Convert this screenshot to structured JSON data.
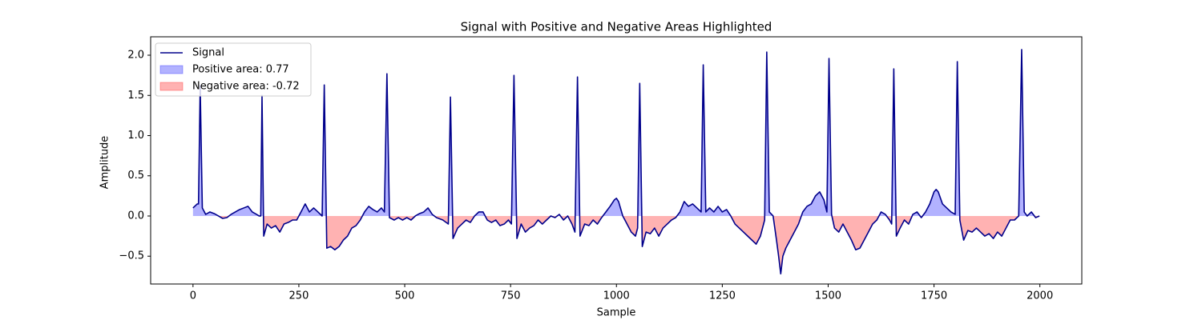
{
  "chart_data": {
    "type": "line",
    "title": "Signal with Positive and Negative Areas Highlighted",
    "xlabel": "Sample",
    "ylabel": "Amplitude",
    "xlim": [
      -100,
      2099
    ],
    "ylim": [
      -0.846,
      2.229
    ],
    "xticks": [
      0,
      250,
      500,
      750,
      1000,
      1250,
      1500,
      1750,
      2000
    ],
    "yticks": [
      {
        "value": -0.5,
        "label": "−0.5"
      },
      {
        "value": 0,
        "label": "0.0"
      },
      0.5,
      {
        "value": 1,
        "label": "1.0"
      },
      1.5,
      {
        "value": 2,
        "label": "2.0"
      }
    ],
    "legend": "upper left",
    "x": [
      0,
      10,
      13,
      17,
      22,
      30,
      40,
      50,
      60,
      70,
      80,
      90,
      100,
      110,
      120,
      130,
      140,
      150,
      156,
      160,
      163,
      167,
      175,
      185,
      195,
      205,
      215,
      225,
      235,
      245,
      255,
      265,
      275,
      285,
      295,
      305,
      310,
      316,
      325,
      335,
      345,
      355,
      365,
      375,
      385,
      395,
      405,
      415,
      425,
      435,
      445,
      452,
      458,
      464,
      475,
      485,
      495,
      505,
      515,
      525,
      535,
      545,
      555,
      565,
      575,
      590,
      603,
      608,
      614,
      625,
      635,
      645,
      655,
      665,
      675,
      685,
      695,
      705,
      715,
      725,
      735,
      745,
      752,
      758,
      765,
      775,
      785,
      795,
      805,
      815,
      825,
      835,
      845,
      855,
      865,
      875,
      885,
      895,
      902,
      908,
      914,
      925,
      935,
      945,
      955,
      965,
      975,
      985,
      995,
      1000,
      1005,
      1015,
      1025,
      1035,
      1045,
      1050,
      1055,
      1061,
      1070,
      1080,
      1090,
      1100,
      1110,
      1120,
      1130,
      1140,
      1150,
      1160,
      1170,
      1180,
      1190,
      1200,
      1205,
      1211,
      1220,
      1230,
      1240,
      1250,
      1260,
      1270,
      1280,
      1290,
      1300,
      1310,
      1320,
      1330,
      1340,
      1350,
      1355,
      1361,
      1370,
      1378,
      1383,
      1388,
      1393,
      1400,
      1410,
      1420,
      1430,
      1440,
      1450,
      1460,
      1470,
      1480,
      1490,
      1497,
      1502,
      1508,
      1515,
      1525,
      1535,
      1545,
      1555,
      1565,
      1575,
      1585,
      1595,
      1605,
      1615,
      1625,
      1635,
      1645,
      1650,
      1655,
      1661,
      1670,
      1680,
      1690,
      1700,
      1710,
      1720,
      1730,
      1740,
      1750,
      1755,
      1760,
      1770,
      1780,
      1790,
      1800,
      1805,
      1811,
      1820,
      1830,
      1840,
      1850,
      1860,
      1870,
      1880,
      1890,
      1900,
      1910,
      1920,
      1930,
      1940,
      1950,
      1957,
      1963,
      1970,
      1980,
      1990,
      1999
    ],
    "series": [
      {
        "name": "Signal",
        "color": "#00008b",
        "values": [
          0.1,
          0.15,
          0.15,
          1.62,
          0.1,
          0.02,
          0.05,
          0.03,
          0.0,
          -0.03,
          -0.02,
          0.02,
          0.05,
          0.08,
          0.1,
          0.12,
          0.05,
          0.02,
          0.0,
          0.0,
          1.5,
          -0.25,
          -0.1,
          -0.15,
          -0.12,
          -0.2,
          -0.1,
          -0.08,
          -0.05,
          -0.05,
          0.05,
          0.15,
          0.05,
          0.1,
          0.05,
          0.0,
          1.63,
          -0.4,
          -0.38,
          -0.42,
          -0.38,
          -0.3,
          -0.25,
          -0.15,
          -0.12,
          -0.05,
          0.05,
          0.12,
          0.08,
          0.05,
          0.1,
          0.05,
          1.77,
          -0.02,
          -0.05,
          -0.02,
          -0.05,
          -0.02,
          -0.05,
          0.0,
          0.03,
          0.05,
          0.1,
          0.02,
          -0.02,
          -0.05,
          -0.1,
          1.48,
          -0.28,
          -0.15,
          -0.1,
          -0.05,
          -0.08,
          0.0,
          0.05,
          0.05,
          -0.05,
          -0.08,
          -0.05,
          -0.12,
          -0.1,
          -0.05,
          -0.1,
          1.75,
          -0.28,
          -0.1,
          -0.2,
          -0.15,
          -0.12,
          -0.05,
          -0.1,
          -0.05,
          0.0,
          -0.02,
          0.02,
          -0.05,
          0.0,
          -0.1,
          -0.2,
          1.73,
          -0.25,
          -0.1,
          -0.12,
          -0.05,
          -0.1,
          -0.02,
          0.05,
          0.12,
          0.2,
          0.22,
          0.18,
          0.0,
          -0.1,
          -0.2,
          -0.25,
          -0.15,
          1.65,
          -0.38,
          -0.2,
          -0.22,
          -0.15,
          -0.25,
          -0.15,
          -0.1,
          -0.05,
          -0.02,
          0.05,
          0.18,
          0.12,
          0.15,
          0.1,
          0.05,
          1.88,
          0.05,
          0.1,
          0.05,
          0.12,
          0.05,
          0.08,
          0.0,
          -0.1,
          -0.15,
          -0.2,
          -0.25,
          -0.3,
          -0.35,
          -0.25,
          -0.05,
          2.04,
          0.05,
          0.0,
          -0.3,
          -0.5,
          -0.72,
          -0.5,
          -0.4,
          -0.3,
          -0.2,
          -0.1,
          0.05,
          0.12,
          0.15,
          0.25,
          0.3,
          0.2,
          0.05,
          1.96,
          0.02,
          -0.15,
          -0.2,
          -0.1,
          -0.2,
          -0.3,
          -0.42,
          -0.4,
          -0.3,
          -0.2,
          -0.1,
          -0.05,
          0.05,
          0.02,
          -0.05,
          -0.1,
          1.83,
          -0.25,
          -0.15,
          -0.05,
          -0.1,
          0.02,
          0.05,
          -0.02,
          0.05,
          0.15,
          0.3,
          0.33,
          0.3,
          0.15,
          0.1,
          0.05,
          0.02,
          1.92,
          -0.05,
          -0.3,
          -0.18,
          -0.2,
          -0.15,
          -0.2,
          -0.25,
          -0.22,
          -0.28,
          -0.2,
          -0.25,
          -0.15,
          -0.05,
          -0.05,
          0.0,
          2.07,
          0.05,
          0.0,
          0.05,
          -0.02,
          0.0
        ]
      }
    ],
    "fills": [
      {
        "name": "Positive area: 0.77",
        "color": "blue",
        "opacity": 0.3,
        "side": "positive"
      },
      {
        "name": "Negative area: -0.72",
        "color": "red",
        "opacity": 0.3,
        "side": "negative"
      }
    ]
  }
}
